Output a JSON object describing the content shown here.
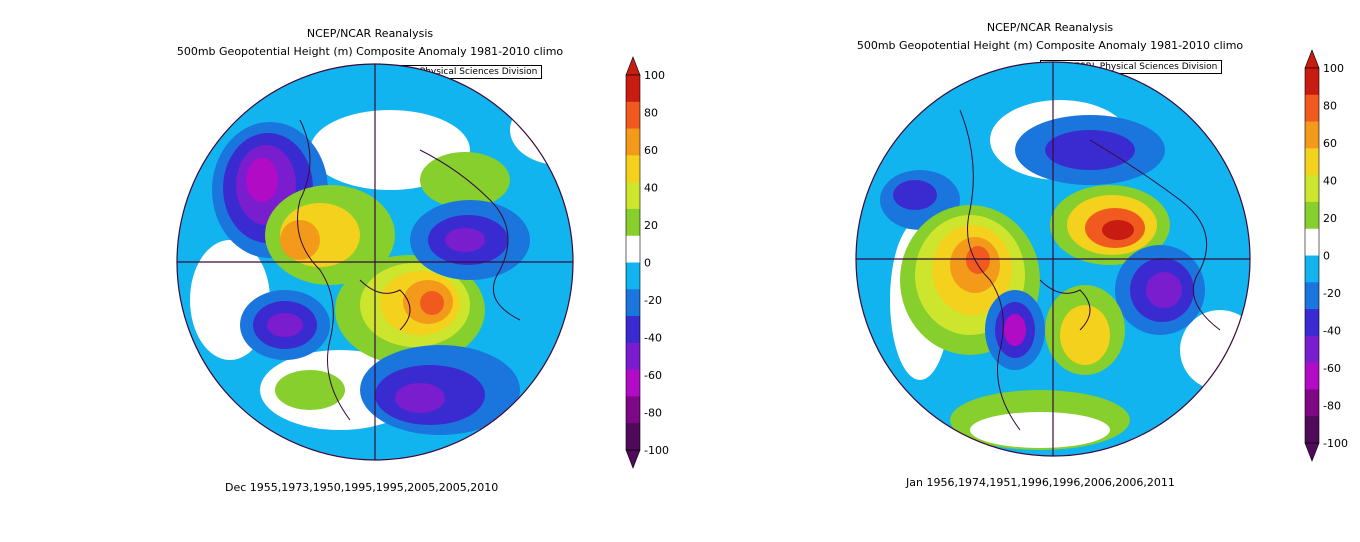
{
  "panels": [
    {
      "title_line1": "NCEP/NCAR Reanalysis",
      "title_line2": "500mb Geopotential Height (m) Composite Anomaly 1981-2010 climo",
      "credit": "NOAA/ESRL Physical Sciences Division",
      "caption": "Dec 1955,1973,1950,1995,1995,2005,2005,2010"
    },
    {
      "title_line1": "NCEP/NCAR Reanalysis",
      "title_line2": "500mb Geopotential Height (m) Composite Anomaly 1981-2010 climo",
      "credit": "NOAA/ESRL Physical Sciences Division",
      "caption": "Jan 1956,1974,1951,1996,1996,2006,2006,2011"
    }
  ],
  "colorbar": {
    "labels": [
      "100",
      "80",
      "60",
      "40",
      "20",
      "0",
      "-20",
      "-40",
      "-60",
      "-80",
      "-100"
    ],
    "colors": [
      "#c81c12",
      "#f05a1e",
      "#f39a1b",
      "#f3d11c",
      "#cde62d",
      "#86cf2c",
      "#ffffff",
      "#11b4ee",
      "#1a76dc",
      "#3a2bd0",
      "#7a1dce",
      "#b20bc6",
      "#7d0784",
      "#4f0a5a"
    ]
  }
}
